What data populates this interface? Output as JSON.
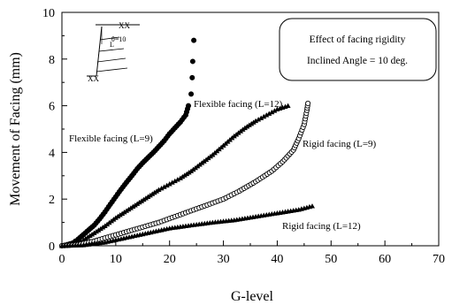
{
  "chart_data": {
    "type": "scatter",
    "xlabel": "G-level",
    "ylabel": "Movement of Facing (mm)",
    "xlim": [
      0,
      70
    ],
    "ylim": [
      0,
      10
    ],
    "x_ticks": [
      "0",
      "10",
      "20",
      "30",
      "40",
      "50",
      "60",
      "70"
    ],
    "y_ticks": [
      "0",
      "2",
      "4",
      "6",
      "8",
      "10"
    ],
    "legend_box": {
      "line1": "Effect of facing rigidity",
      "line2": "Inclined Angle = 10 deg."
    },
    "inset_label": "θ=10",
    "series": [
      {
        "name": "Flexible facing (L=9)",
        "marker": "filled-circle",
        "points": [
          [
            0,
            0
          ],
          [
            1,
            0.05
          ],
          [
            2,
            0.12
          ],
          [
            3,
            0.28
          ],
          [
            4,
            0.48
          ],
          [
            5,
            0.68
          ],
          [
            6,
            0.88
          ],
          [
            7,
            1.15
          ],
          [
            8,
            1.45
          ],
          [
            9,
            1.78
          ],
          [
            10,
            2.1
          ],
          [
            11,
            2.42
          ],
          [
            12,
            2.72
          ],
          [
            13,
            3.0
          ],
          [
            14,
            3.3
          ],
          [
            15,
            3.55
          ],
          [
            16,
            3.78
          ],
          [
            17,
            4.0
          ],
          [
            18,
            4.25
          ],
          [
            19,
            4.5
          ],
          [
            20,
            4.8
          ],
          [
            21,
            5.05
          ],
          [
            22,
            5.3
          ],
          [
            23,
            5.6
          ],
          [
            23.5,
            6.0
          ],
          [
            24,
            6.5
          ],
          [
            24.2,
            7.2
          ],
          [
            24.3,
            7.9
          ],
          [
            24.5,
            8.8
          ]
        ]
      },
      {
        "name": "Flexible facing (L=12)",
        "marker": "filled-triangle",
        "points": [
          [
            0,
            0
          ],
          [
            2,
            0.05
          ],
          [
            4,
            0.25
          ],
          [
            6,
            0.55
          ],
          [
            8,
            0.85
          ],
          [
            10,
            1.2
          ],
          [
            12,
            1.5
          ],
          [
            14,
            1.8
          ],
          [
            16,
            2.1
          ],
          [
            18,
            2.4
          ],
          [
            20,
            2.65
          ],
          [
            22,
            2.9
          ],
          [
            24,
            3.2
          ],
          [
            26,
            3.55
          ],
          [
            28,
            3.9
          ],
          [
            30,
            4.3
          ],
          [
            32,
            4.7
          ],
          [
            34,
            5.05
          ],
          [
            36,
            5.35
          ],
          [
            38,
            5.6
          ],
          [
            40,
            5.85
          ],
          [
            42,
            6.0
          ]
        ]
      },
      {
        "name": "Rigid facing (L=9)",
        "marker": "open-circle",
        "points": [
          [
            0,
            0
          ],
          [
            3,
            0.05
          ],
          [
            6,
            0.2
          ],
          [
            9,
            0.4
          ],
          [
            12,
            0.6
          ],
          [
            15,
            0.8
          ],
          [
            18,
            1.0
          ],
          [
            21,
            1.25
          ],
          [
            24,
            1.5
          ],
          [
            27,
            1.75
          ],
          [
            30,
            2.0
          ],
          [
            33,
            2.35
          ],
          [
            36,
            2.75
          ],
          [
            39,
            3.2
          ],
          [
            41,
            3.6
          ],
          [
            43,
            4.1
          ],
          [
            44,
            4.6
          ],
          [
            45,
            5.2
          ],
          [
            45.5,
            5.8
          ],
          [
            45.7,
            6.1
          ]
        ]
      },
      {
        "name": "Rigid facing (L=12)",
        "marker": "filled-triangle",
        "points": [
          [
            0,
            0
          ],
          [
            4,
            0.03
          ],
          [
            8,
            0.15
          ],
          [
            12,
            0.35
          ],
          [
            16,
            0.55
          ],
          [
            20,
            0.75
          ],
          [
            24,
            0.88
          ],
          [
            28,
            1.0
          ],
          [
            32,
            1.1
          ],
          [
            36,
            1.25
          ],
          [
            40,
            1.4
          ],
          [
            44,
            1.55
          ],
          [
            46.5,
            1.7
          ]
        ]
      }
    ]
  }
}
